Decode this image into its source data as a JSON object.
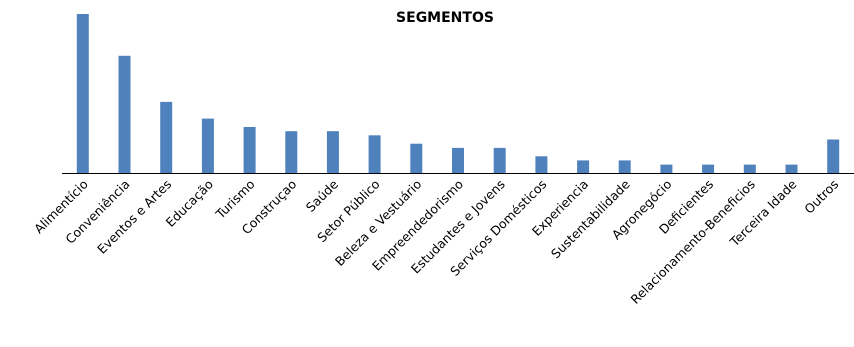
{
  "chart_data": {
    "type": "bar",
    "title": "SEGMENTOS",
    "xlabel": "",
    "ylabel": "",
    "categories": [
      "Alimentício",
      "Conveniência",
      "Eventos e Artes",
      "Educação",
      "Turismo",
      "Construçao",
      "Saúde",
      "Setor Público",
      "Beleza e Vestuário",
      "Empreendedorismo",
      "Estudantes e Jovens",
      "Serviços Domésticos",
      "Experiencia",
      "Sustentabilidade",
      "Agronegócio",
      "Deficientes",
      "Relacionamento-Beneficios",
      "Terceira Idade",
      "Outros"
    ],
    "values": [
      38,
      28,
      17,
      13,
      11,
      10,
      10,
      9,
      7,
      6,
      6,
      4,
      3,
      3,
      2,
      2,
      2,
      2,
      8
    ],
    "ylim": [
      0,
      38
    ],
    "grid": false,
    "legend": "none",
    "bar_color": "#4f81bd",
    "axis_color": "#000000"
  }
}
